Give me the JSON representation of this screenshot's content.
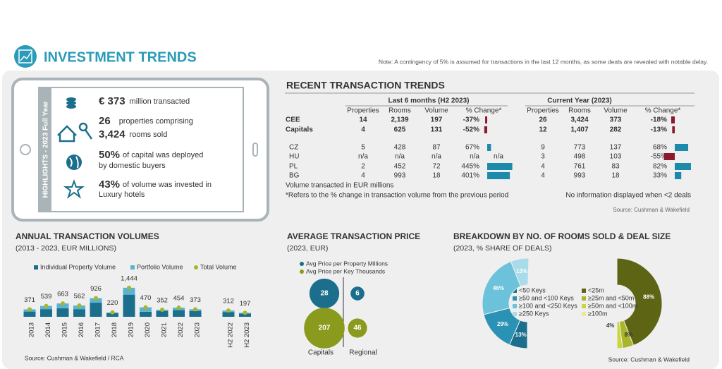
{
  "header": {
    "title": "INVESTMENT TRENDS",
    "note": "Note: A contingency of 5% is assumed for transactions in the last 12 months, as some deals are revealed with notable delay."
  },
  "highlights": {
    "label": "HIGHLIGHTS - 2023 Full Year",
    "items": [
      {
        "bold": "€ 373",
        "text": "million transacted"
      },
      {
        "bold": "26",
        "text": "properties comprising"
      },
      {
        "bold": "3,424",
        "text": "rooms sold"
      },
      {
        "bold": "50%",
        "text": "of capital was deployed",
        "text2": "by domestic buyers"
      },
      {
        "bold": "43%",
        "text": "of volume was invested in",
        "text2": "Luxury hotels"
      }
    ]
  },
  "table": {
    "title": "RECENT TRANSACTION TRENDS",
    "groups": [
      "Last 6 months (H2 2023)",
      "Current Year (2023)"
    ],
    "columns": [
      "Properties",
      "Rooms",
      "Volume",
      "% Change*"
    ],
    "rows": [
      {
        "label": "CEE",
        "h2": [
          "14",
          "2,139",
          "197",
          {
            "value": -37,
            "label": "-37%"
          }
        ],
        "cy": [
          "26",
          "3,424",
          "373",
          {
            "value": -18,
            "label": "-18%"
          }
        ]
      },
      {
        "label": "Capitals",
        "h2": [
          "4",
          "625",
          "131",
          {
            "value": -52,
            "label": "-52%"
          }
        ],
        "cy": [
          "12",
          "1,407",
          "282",
          {
            "value": -13,
            "label": "-13%"
          }
        ]
      },
      {
        "label": "CZ",
        "h2": [
          "5",
          "428",
          "87",
          {
            "value": 67,
            "label": "67%"
          }
        ],
        "cy": [
          "9",
          "773",
          "137",
          {
            "value": 68,
            "label": "68%"
          }
        ]
      },
      {
        "label": "HU",
        "h2": [
          "n/a",
          "n/a",
          "n/a",
          {
            "value": null,
            "label": "n/a"
          }
        ],
        "extra": "n/a",
        "cy": [
          "3",
          "498",
          "103",
          {
            "value": -55,
            "label": "-55%"
          }
        ]
      },
      {
        "label": "PL",
        "h2": [
          "2",
          "452",
          "72",
          {
            "value": 445,
            "label": "445%"
          }
        ],
        "cy": [
          "4",
          "761",
          "83",
          {
            "value": 82,
            "label": "82%"
          }
        ]
      },
      {
        "label": "BG",
        "h2": [
          "4",
          "993",
          "18",
          {
            "value": 401,
            "label": "401%"
          }
        ],
        "cy": [
          "4",
          "993",
          "18",
          {
            "value": 33,
            "label": "33%"
          }
        ]
      }
    ],
    "notes": [
      "Volume transacted in EUR millions",
      "*Refers to the % change in transaction volume from the previous period"
    ],
    "note_right": "No information displayed when <2 deals",
    "source": "Source: Cushman & Wakefield"
  },
  "chart_data": [
    {
      "type": "stacked_bar",
      "title": "ANNUAL TRANSACTION VOLUMES",
      "subtitle": "(2013 - 2023, EUR MILLIONS)",
      "categories": [
        "2013",
        "2014",
        "2015",
        "2016",
        "2017",
        "2018",
        "2019",
        "2020",
        "2021",
        "2022",
        "2023",
        null,
        "H2 2022",
        "H2 2023"
      ],
      "series": [
        {
          "name": "Individual Property Volume",
          "color": "#1b6f8c",
          "mark": "bar",
          "values": [
            260,
            380,
            420,
            380,
            700,
            180,
            1100,
            250,
            280,
            330,
            290,
            null,
            240,
            160
          ]
        },
        {
          "name": "Portfolio Volume",
          "color": "#5ab4cf",
          "mark": "bar",
          "values": [
            111,
            159,
            243,
            182,
            226,
            40,
            344,
            220,
            72,
            124,
            83,
            null,
            72,
            37
          ]
        },
        {
          "name": "Total Volume",
          "color": "#a9b52a",
          "mark": "dot",
          "values": [
            371,
            539,
            663,
            562,
            926,
            220,
            1444,
            470,
            352,
            454,
            373,
            null,
            312,
            197
          ],
          "value_labels": [
            "371",
            "539",
            "663",
            "562",
            "926",
            "220",
            "1,444",
            "470",
            "352",
            "454",
            "373",
            null,
            "312",
            "197"
          ]
        }
      ],
      "source": "Source: Cushman & Wakefield / RCA"
    },
    {
      "type": "bubble",
      "title": "AVERAGE TRANSACTION PRICE",
      "subtitle": "(2023, EUR)",
      "categories": [
        "Capitals",
        "Regional"
      ],
      "series": [
        {
          "name": "Avg Price per Property Millions",
          "color": "#1b6f8c",
          "values": [
            28,
            6
          ]
        },
        {
          "name": "Avg Price per Key Thousands",
          "color": "#8a9a1c",
          "values": [
            207,
            46
          ]
        }
      ]
    },
    {
      "type": "half_donut",
      "title": "BREAKDOWN BY NO. OF ROOMS SOLD & DEAL SIZE",
      "subtitle": "(2023, % SHARE OF DEALS)",
      "categories": [
        "<50 Keys",
        "≥50 and <100 Keys",
        "≥100 and <250 Keys",
        "≥250 Keys"
      ],
      "values": [
        13,
        29,
        46,
        13
      ],
      "value_labels": [
        "13%",
        "29%",
        "46%",
        "13%"
      ],
      "colors": [
        "#1b6f8c",
        "#2a92b4",
        "#6cc2da",
        "#a8dcea"
      ],
      "source": "Source: Cushman & Wakefield"
    },
    {
      "type": "half_donut",
      "categories": [
        "<25m",
        "≥25m and <50m",
        "≥50m and <100m",
        "≥100m"
      ],
      "values": [
        88,
        8,
        4,
        0
      ],
      "value_labels": [
        "88%",
        "8%",
        "4%",
        null
      ],
      "colors": [
        "#5d6515",
        "#a9b52a",
        "#c9d640",
        "#e6ec90"
      ]
    }
  ]
}
